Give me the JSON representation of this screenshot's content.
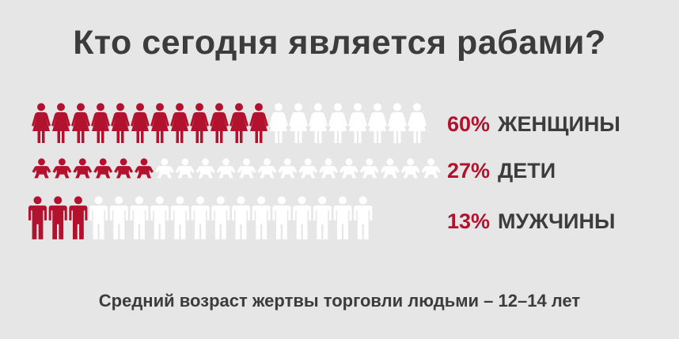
{
  "title": "Кто сегодня является рабами?",
  "footnote": "Средний возраст жертвы торговли людьми – 12–14 лет",
  "colors": {
    "background": "#e6e6e6",
    "highlight": "#b3122e",
    "base": "#ffffff",
    "text": "#3c3c3c"
  },
  "chart_data": {
    "type": "pictogram",
    "unit": "%",
    "series": [
      {
        "key": "women",
        "label": "ЖЕНЩИНЫ",
        "percent": "60%",
        "value": 60,
        "icon": "woman-icon",
        "filled": 12,
        "total": 20
      },
      {
        "key": "children",
        "label": "ДЕТИ",
        "percent": "27%",
        "value": 27,
        "icon": "child-icon",
        "filled": 6,
        "total": 20
      },
      {
        "key": "men",
        "label": "МУЖЧИНЫ",
        "percent": "13%",
        "value": 13,
        "icon": "man-icon",
        "filled": 3,
        "total": 17
      }
    ]
  }
}
